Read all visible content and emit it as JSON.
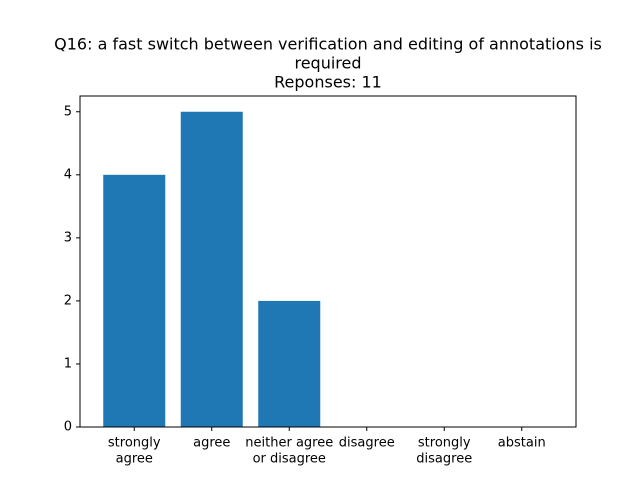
{
  "chart_data": {
    "type": "bar",
    "title": [
      "Q16: a fast switch between verification and editing of annotations is",
      "required"
    ],
    "subtitle": "Reponses: 11",
    "categories": [
      [
        "strongly",
        "agree"
      ],
      [
        "agree"
      ],
      [
        "neither agree",
        "or disagree"
      ],
      [
        "disagree"
      ],
      [
        "strongly",
        "disagree"
      ],
      [
        "abstain"
      ]
    ],
    "values": [
      4,
      5,
      2,
      0,
      0,
      0
    ],
    "color": "#1f77b4",
    "ylim": [
      0,
      5.25
    ],
    "yticks": [
      0,
      1,
      2,
      3,
      4,
      5
    ],
    "grid": false
  }
}
